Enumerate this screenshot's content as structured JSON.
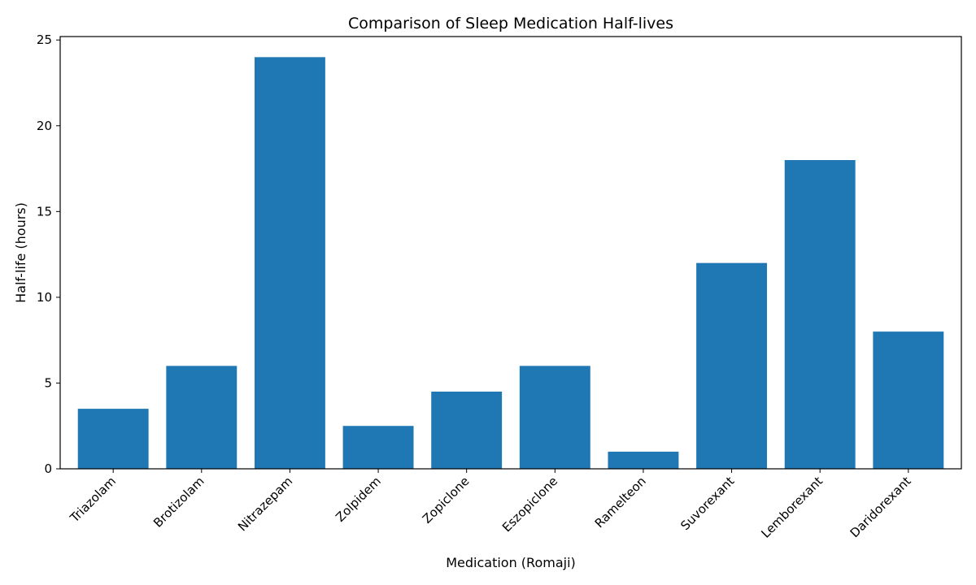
{
  "chart_data": {
    "type": "bar",
    "title": "Comparison of Sleep Medication Half-lives",
    "xlabel": "Medication (Romaji)",
    "ylabel": "Half-life (hours)",
    "categories": [
      "Triazolam",
      "Brotizolam",
      "Nitrazepam",
      "Zolpidem",
      "Zopiclone",
      "Eszopiclone",
      "Ramelteon",
      "Suvorexant",
      "Lemborexant",
      "Daridorexant"
    ],
    "values": [
      3.5,
      6,
      24,
      2.5,
      4.5,
      6,
      1,
      12,
      18,
      8
    ],
    "ylim": [
      0,
      25.2
    ],
    "yticks": [
      0,
      5,
      10,
      15,
      20,
      25
    ],
    "grid": false,
    "legend": false,
    "bar_color": "#1f77b4"
  }
}
